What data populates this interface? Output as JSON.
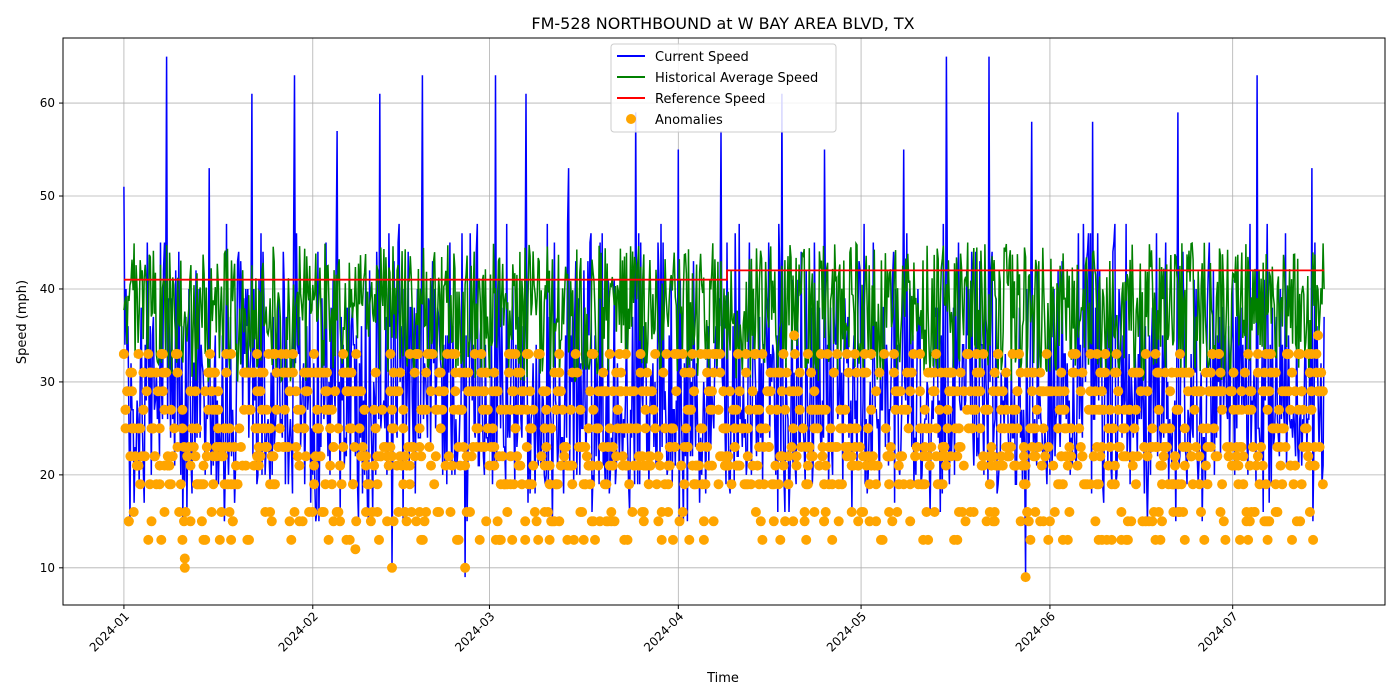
{
  "chart_data": {
    "type": "line",
    "title": "FM-528 NORTHBOUND at W BAY AREA BLVD, TX",
    "xlabel": "Time",
    "ylabel": "Speed (mph)",
    "x_range": [
      "2023-12-22",
      "2024-07-26"
    ],
    "ylim": [
      6,
      67
    ],
    "x_ticks": [
      "2024-01",
      "2024-02",
      "2024-03",
      "2024-04",
      "2024-05",
      "2024-06",
      "2024-07"
    ],
    "y_ticks": [
      10,
      20,
      30,
      40,
      50,
      60
    ],
    "grid": true,
    "legend_position": "top-center",
    "data_range": [
      "2024-01-01",
      "2024-07-16"
    ],
    "series": [
      {
        "name": "Current Speed",
        "color": "#0000ff",
        "kind": "line",
        "sample_points": [
          {
            "x": "2024-01-01",
            "y": 51
          },
          {
            "x": "2024-01-08",
            "y": 65
          },
          {
            "x": "2024-01-15",
            "y": 53
          },
          {
            "x": "2024-01-22",
            "y": 61
          },
          {
            "x": "2024-01-29",
            "y": 63
          },
          {
            "x": "2024-02-05",
            "y": 57
          },
          {
            "x": "2024-02-12",
            "y": 61
          },
          {
            "x": "2024-02-19",
            "y": 63
          },
          {
            "x": "2024-02-26",
            "y": 55
          },
          {
            "x": "2024-03-02",
            "y": 63
          },
          {
            "x": "2024-03-07",
            "y": 61
          },
          {
            "x": "2024-03-14",
            "y": 53
          },
          {
            "x": "2024-03-25",
            "y": 59
          },
          {
            "x": "2024-04-01",
            "y": 55
          },
          {
            "x": "2024-04-08",
            "y": 57
          },
          {
            "x": "2024-04-18",
            "y": 61
          },
          {
            "x": "2024-04-25",
            "y": 55
          },
          {
            "x": "2024-05-08",
            "y": 55
          },
          {
            "x": "2024-05-15",
            "y": 65
          },
          {
            "x": "2024-05-22",
            "y": 65
          },
          {
            "x": "2024-05-29",
            "y": 58
          },
          {
            "x": "2024-06-08",
            "y": 58
          },
          {
            "x": "2024-06-22",
            "y": 59
          },
          {
            "x": "2024-07-05",
            "y": 63
          },
          {
            "x": "2024-07-14",
            "y": 53
          }
        ],
        "min_points": [
          {
            "x": "2024-02-26",
            "y": 9
          },
          {
            "x": "2024-05-28",
            "y": 9
          },
          {
            "x": "2024-02-14",
            "y": 10
          }
        ],
        "typical_range": [
          15,
          47
        ]
      },
      {
        "name": "Historical Average Speed",
        "color": "#008000",
        "kind": "line",
        "typical_range": [
          30,
          45
        ]
      },
      {
        "name": "Reference Speed",
        "color": "#ff0000",
        "kind": "step",
        "points": [
          {
            "x": "2024-01-01",
            "y": 41
          },
          {
            "x": "2024-04-09",
            "y": 41
          },
          {
            "x": "2024-04-09",
            "y": 42
          },
          {
            "x": "2024-07-16",
            "y": 42
          }
        ]
      },
      {
        "name": "Anomalies",
        "color": "#ffa500",
        "kind": "scatter",
        "notable_points": [
          {
            "x": "2024-01-01",
            "y": 33
          },
          {
            "x": "2024-01-11",
            "y": 10
          },
          {
            "x": "2024-01-11",
            "y": 11
          },
          {
            "x": "2024-02-14",
            "y": 10
          },
          {
            "x": "2024-02-26",
            "y": 10
          },
          {
            "x": "2024-02-08",
            "y": 12
          },
          {
            "x": "2024-04-20",
            "y": 35
          },
          {
            "x": "2024-07-15",
            "y": 35
          },
          {
            "x": "2024-05-28",
            "y": 9
          }
        ],
        "typical_values": [
          13,
          15,
          16,
          19,
          21,
          22,
          23,
          25,
          27,
          29,
          31,
          33
        ]
      }
    ]
  }
}
